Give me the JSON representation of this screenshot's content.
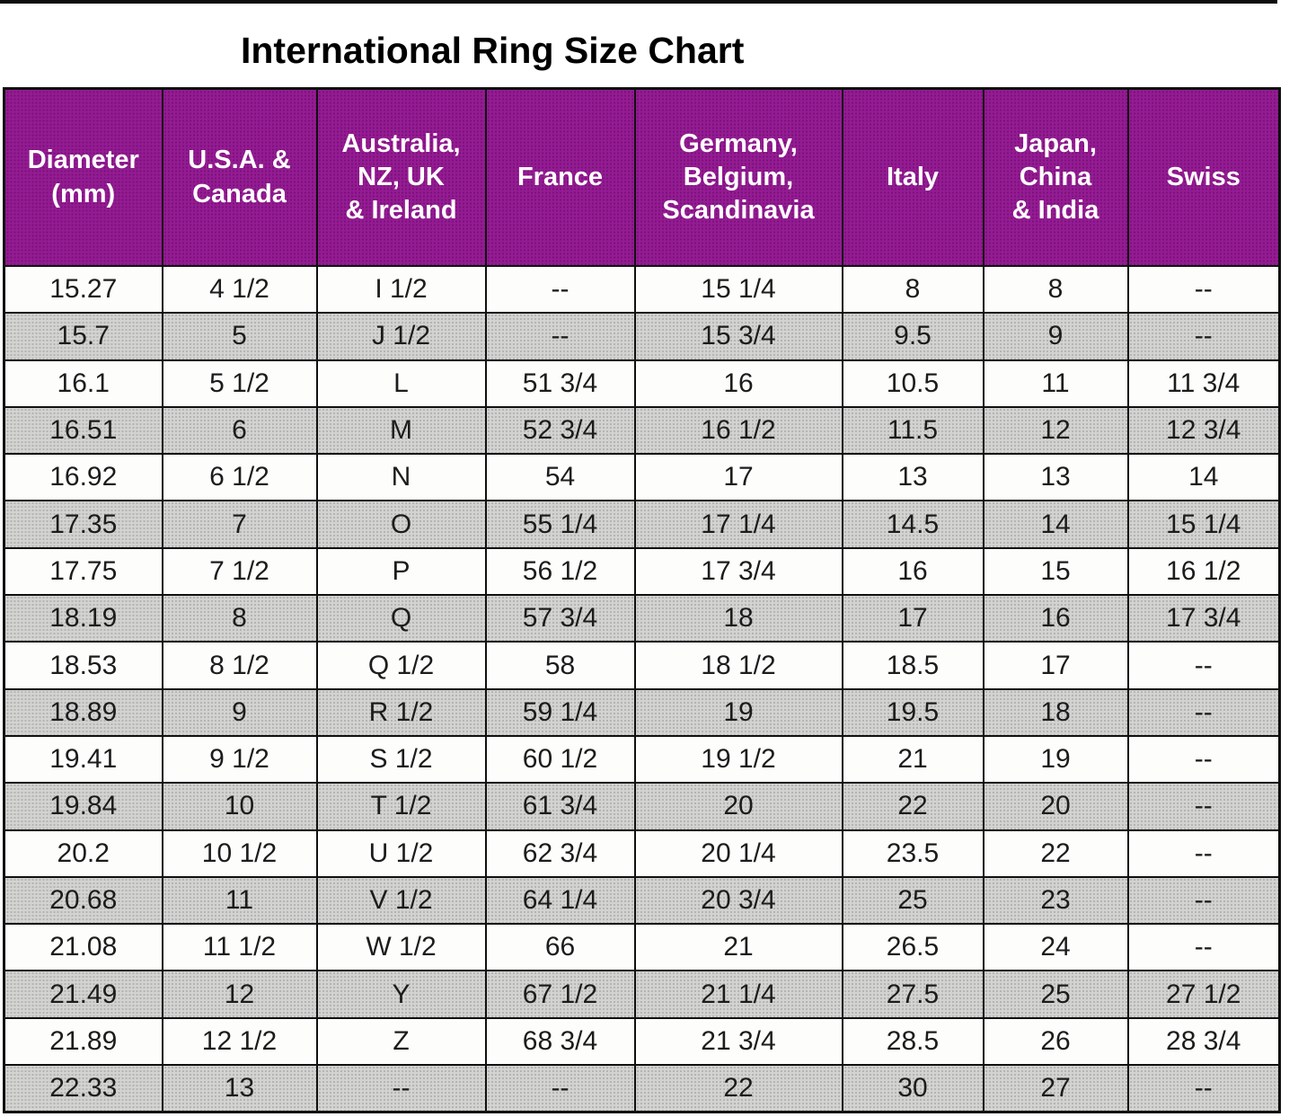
{
  "title": "International Ring Size Chart",
  "colors": {
    "header_bg": "#941c92",
    "header_text": "#ffffff",
    "row_bg": "#fdfdfb",
    "row_alt_bg": "#c9c9c9",
    "border": "#101010",
    "title_text": "#000000"
  },
  "chart_data": {
    "type": "table",
    "title": "International Ring Size Chart",
    "columns": [
      "Diameter\n(mm)",
      "U.S.A. &\nCanada",
      "Australia,\nNZ, UK\n& Ireland",
      "France",
      "Germany,\nBelgium,\nScandinavia",
      "Italy",
      "Japan,\nChina\n& India",
      "Swiss"
    ],
    "rows": [
      [
        "15.27",
        "4 1/2",
        "I 1/2",
        "--",
        "15 1/4",
        "8",
        "8",
        "--"
      ],
      [
        "15.7",
        "5",
        "J 1/2",
        "--",
        "15 3/4",
        "9.5",
        "9",
        "--"
      ],
      [
        "16.1",
        "5 1/2",
        "L",
        "51 3/4",
        "16",
        "10.5",
        "11",
        "11 3/4"
      ],
      [
        "16.51",
        "6",
        "M",
        "52 3/4",
        "16 1/2",
        "11.5",
        "12",
        "12 3/4"
      ],
      [
        "16.92",
        "6 1/2",
        "N",
        "54",
        "17",
        "13",
        "13",
        "14"
      ],
      [
        "17.35",
        "7",
        "O",
        "55 1/4",
        "17 1/4",
        "14.5",
        "14",
        "15 1/4"
      ],
      [
        "17.75",
        "7 1/2",
        "P",
        "56 1/2",
        "17 3/4",
        "16",
        "15",
        "16 1/2"
      ],
      [
        "18.19",
        "8",
        "Q",
        "57 3/4",
        "18",
        "17",
        "16",
        "17 3/4"
      ],
      [
        "18.53",
        "8 1/2",
        "Q 1/2",
        "58",
        "18 1/2",
        "18.5",
        "17",
        "--"
      ],
      [
        "18.89",
        "9",
        "R 1/2",
        "59 1/4",
        "19",
        "19.5",
        "18",
        "--"
      ],
      [
        "19.41",
        "9 1/2",
        "S 1/2",
        "60 1/2",
        "19 1/2",
        "21",
        "19",
        "--"
      ],
      [
        "19.84",
        "10",
        "T 1/2",
        "61 3/4",
        "20",
        "22",
        "20",
        "--"
      ],
      [
        "20.2",
        "10 1/2",
        "U 1/2",
        "62 3/4",
        "20 1/4",
        "23.5",
        "22",
        "--"
      ],
      [
        "20.68",
        "11",
        "V 1/2",
        "64 1/4",
        "20 3/4",
        "25",
        "23",
        "--"
      ],
      [
        "21.08",
        "11 1/2",
        "W 1/2",
        "66",
        "21",
        "26.5",
        "24",
        "--"
      ],
      [
        "21.49",
        "12",
        "Y",
        "67 1/2",
        "21 1/4",
        "27.5",
        "25",
        "27 1/2"
      ],
      [
        "21.89",
        "12 1/2",
        "Z",
        "68 3/4",
        "21 3/4",
        "28.5",
        "26",
        "28 3/4"
      ],
      [
        "22.33",
        "13",
        "--",
        "--",
        "22",
        "30",
        "27",
        "--"
      ]
    ]
  }
}
